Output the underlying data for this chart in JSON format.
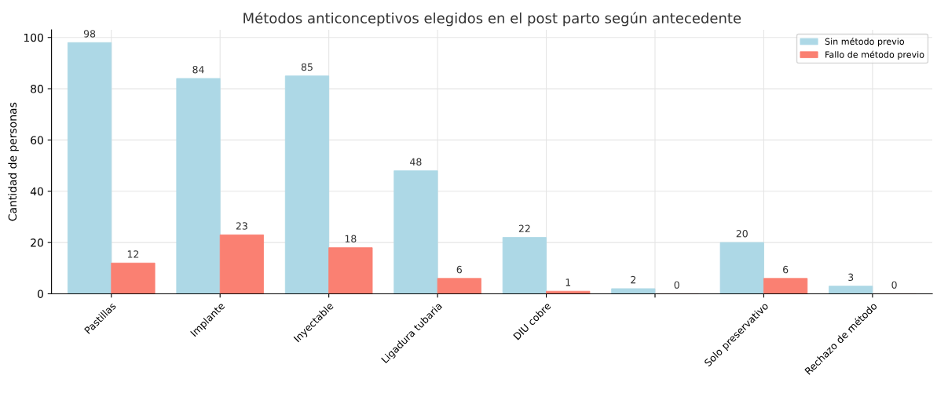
{
  "chart_data": {
    "type": "bar",
    "title": "Métodos anticonceptivos elegidos en el post parto según antecedente",
    "ylabel": "Cantidad de personas",
    "categories": [
      "Pastillas",
      "Implante",
      "Inyectable",
      "Ligadura tubaria",
      "DIU cobre",
      null,
      "Solo preservativo",
      "Rechazo de método"
    ],
    "series": [
      {
        "name": "Sin método previo",
        "color": "#add8e6",
        "values": [
          98,
          84,
          85,
          48,
          22,
          2,
          20,
          3
        ]
      },
      {
        "name": "Fallo de método previo",
        "color": "#fa8072",
        "values": [
          12,
          23,
          18,
          6,
          1,
          0,
          6,
          0
        ]
      }
    ],
    "ylim": [
      0,
      103
    ],
    "yticks": [
      0,
      20,
      40,
      60,
      80,
      100
    ],
    "grid": true,
    "legend": "top right",
    "data_labels": true
  }
}
